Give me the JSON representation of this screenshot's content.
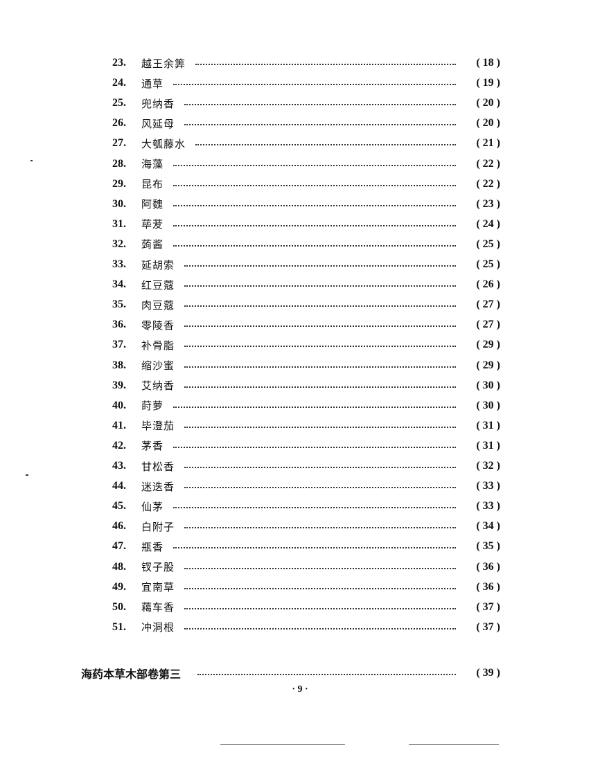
{
  "entries": [
    {
      "num": "23.",
      "name": "越王余筭",
      "page": "( 18 )"
    },
    {
      "num": "24.",
      "name": "通草",
      "page": "( 19 )"
    },
    {
      "num": "25.",
      "name": "兜纳香",
      "page": "( 20 )"
    },
    {
      "num": "26.",
      "name": "风延母",
      "page": "( 20 )"
    },
    {
      "num": "27.",
      "name": "大瓠藤水",
      "page": "( 21 )"
    },
    {
      "num": "28.",
      "name": "海藻",
      "page": "( 22 )"
    },
    {
      "num": "29.",
      "name": "昆布",
      "page": "( 22 )"
    },
    {
      "num": "30.",
      "name": "阿魏",
      "page": "( 23 )"
    },
    {
      "num": "31.",
      "name": "荜茇",
      "page": "( 24 )"
    },
    {
      "num": "32.",
      "name": "蒟酱",
      "page": "( 25 )"
    },
    {
      "num": "33.",
      "name": "延胡索",
      "page": "( 25 )"
    },
    {
      "num": "34.",
      "name": "红豆蔻",
      "page": "( 26 )"
    },
    {
      "num": "35.",
      "name": "肉豆蔻",
      "page": "( 27 )"
    },
    {
      "num": "36.",
      "name": "零陵香",
      "page": "( 27 )"
    },
    {
      "num": "37.",
      "name": "补骨脂",
      "page": "( 29 )"
    },
    {
      "num": "38.",
      "name": "缩沙蜜",
      "page": "( 29 )"
    },
    {
      "num": "39.",
      "name": "艾纳香",
      "page": "( 30 )"
    },
    {
      "num": "40.",
      "name": "莳萝",
      "page": "( 30 )"
    },
    {
      "num": "41.",
      "name": "毕澄茄",
      "page": "( 31 )"
    },
    {
      "num": "42.",
      "name": "茅香",
      "page": "( 31 )"
    },
    {
      "num": "43.",
      "name": "甘松香",
      "page": "( 32 )"
    },
    {
      "num": "44.",
      "name": "迷迭香",
      "page": "( 33 )"
    },
    {
      "num": "45.",
      "name": "仙茅",
      "page": "( 33 )"
    },
    {
      "num": "46.",
      "name": "白附子",
      "page": "( 34 )"
    },
    {
      "num": "47.",
      "name": "瓶香",
      "page": "( 35 )"
    },
    {
      "num": "48.",
      "name": "钗子股",
      "page": "( 36 )"
    },
    {
      "num": "49.",
      "name": "宜南草",
      "page": "( 36 )"
    },
    {
      "num": "50.",
      "name": "藒车香",
      "page": "( 37 )"
    },
    {
      "num": "51.",
      "name": "冲洞根",
      "page": "( 37 )"
    }
  ],
  "section": {
    "title": "海药本草木部卷第三",
    "page": "( 39 )"
  },
  "folio": "· 9 ·"
}
